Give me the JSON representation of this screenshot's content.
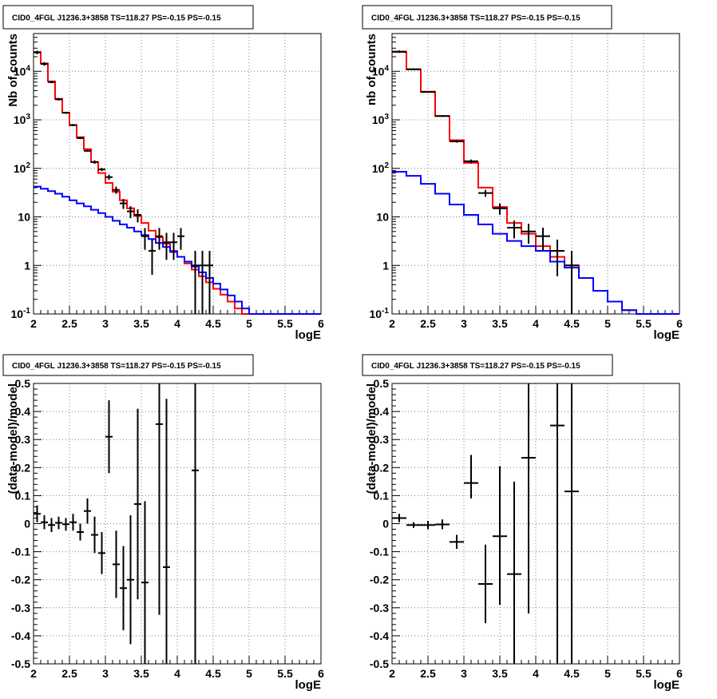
{
  "colors": {
    "model_total": "#ff0000",
    "model_background": "#0000ff",
    "data": "#000000",
    "grid": "#7f7f7f"
  },
  "chart_data": [
    {
      "type": "step-histogram",
      "title": "CID0_4FGL J1236.3+3858 TS=118.27 PS=-0.15 PS=-0.15",
      "xlabel": "logE",
      "ylabel": "Nb of counts",
      "yscale": "log",
      "xlim": [
        2,
        6
      ],
      "ylim": [
        0.1,
        60000
      ],
      "grid": true,
      "x_ticks": [
        "2",
        "2.5",
        "3",
        "3.5",
        "4",
        "4.5",
        "5",
        "5.5",
        "6"
      ],
      "y_ticks": [
        "10^-1",
        "1",
        "10",
        "10^2",
        "10^3",
        "10^4"
      ],
      "bin_edges": [
        2.0,
        2.1,
        2.2,
        2.3,
        2.4,
        2.5,
        2.6,
        2.7,
        2.8,
        2.9,
        3.0,
        3.1,
        3.2,
        3.3,
        3.4,
        3.5,
        3.6,
        3.7,
        3.8,
        3.9,
        4.0,
        4.1,
        4.2,
        4.3,
        4.4,
        4.5,
        4.6,
        4.7,
        4.8,
        4.9,
        5.0,
        5.1,
        5.2,
        5.3,
        5.4,
        5.5,
        5.6,
        5.7,
        5.8,
        5.9,
        6.0
      ],
      "series": [
        {
          "color": "red",
          "values": [
            25000,
            14500,
            6200,
            2700,
            1400,
            780,
            440,
            250,
            135,
            80,
            50,
            33,
            22,
            15,
            10.5,
            7.5,
            5.2,
            3.8,
            2.8,
            2.0,
            1.5,
            1.1,
            0.82,
            0.6,
            0.45,
            0.33,
            0.25,
            0.18,
            0.13,
            0.1,
            0.1,
            0.1,
            0.1,
            0.1,
            0.1,
            0.1,
            0.1,
            0.1,
            0.1,
            0.1
          ]
        },
        {
          "color": "blue",
          "values": [
            42,
            38,
            34,
            30,
            26,
            22,
            19,
            16.5,
            14,
            12,
            10,
            8.3,
            7,
            6,
            5,
            4.2,
            3.5,
            2.9,
            2.4,
            1.9,
            1.5,
            1.2,
            0.95,
            0.72,
            0.55,
            0.42,
            0.32,
            0.24,
            0.18,
            0.13,
            0.1,
            0.1,
            0.1,
            0.1,
            0.1,
            0.1,
            0.1,
            0.1,
            0.1,
            0.1
          ]
        },
        {
          "type": "errorbar",
          "color": "black",
          "x": [
            2.05,
            2.15,
            2.25,
            2.35,
            2.45,
            2.55,
            2.65,
            2.75,
            2.85,
            2.95,
            3.05,
            3.15,
            3.25,
            3.35,
            3.45,
            3.55,
            3.65,
            3.75,
            3.85,
            3.95,
            4.05,
            4.25,
            4.35,
            4.45
          ],
          "xerr": 0.05,
          "y": [
            24500,
            14200,
            6000,
            2650,
            1400,
            780,
            420,
            230,
            135,
            95,
            66,
            36,
            19,
            13,
            11,
            4,
            2,
            4,
            3,
            3,
            4,
            1,
            1,
            1
          ],
          "ylow": [
            22500,
            13000,
            5700,
            2500,
            1330,
            740,
            400,
            220,
            124,
            88,
            58,
            30,
            14.6,
            9.4,
            7.7,
            2.1,
            0.64,
            2.1,
            1.3,
            1.3,
            2.1,
            0.1,
            0.1,
            0.1
          ],
          "yhigh": [
            26500,
            15400,
            6300,
            2800,
            1470,
            820,
            440,
            240,
            146,
            102,
            74,
            42,
            23.4,
            16.6,
            14.3,
            5.9,
            3.4,
            5.9,
            4.7,
            4.7,
            5.9,
            2,
            2,
            2
          ]
        }
      ]
    },
    {
      "type": "step-histogram",
      "title": "CID0_4FGL J1236.3+3858 TS=118.27 PS=-0.15 PS=-0.15",
      "xlabel": "logE",
      "ylabel": "nb of counts",
      "yscale": "log",
      "xlim": [
        2,
        6
      ],
      "ylim": [
        0.1,
        60000
      ],
      "grid": true,
      "x_ticks": [
        "2",
        "2.5",
        "3",
        "3.5",
        "4",
        "4.5",
        "5",
        "5.5",
        "6"
      ],
      "y_ticks": [
        "10^-1",
        "1",
        "10",
        "10^2",
        "10^3",
        "10^4"
      ],
      "bin_edges": [
        2.0,
        2.2,
        2.4,
        2.6,
        2.8,
        3.0,
        3.2,
        3.4,
        3.6,
        3.8,
        4.0,
        4.2,
        4.4,
        4.6,
        4.8,
        5.0,
        5.2,
        5.4,
        5.6,
        5.8,
        6.0
      ],
      "series": [
        {
          "color": "red",
          "values": [
            25000,
            11000,
            3800,
            1200,
            380,
            130,
            40,
            16,
            7.5,
            4.5,
            2.5,
            1.5,
            1.0,
            0.55,
            0.3,
            0.18,
            0.12,
            0.1,
            0.1,
            0.1
          ]
        },
        {
          "color": "blue",
          "values": [
            85,
            70,
            48,
            30,
            18,
            11,
            7,
            4.5,
            3.2,
            2.5,
            2.0,
            1.2,
            0.9,
            0.55,
            0.3,
            0.18,
            0.12,
            0.1,
            0.1,
            0.1
          ]
        },
        {
          "type": "errorbar",
          "color": "black",
          "x": [
            2.1,
            2.3,
            2.5,
            2.7,
            2.9,
            3.1,
            3.3,
            3.5,
            3.7,
            3.9,
            4.1,
            4.3,
            4.5
          ],
          "xerr": 0.1,
          "y": [
            25500,
            11000,
            3750,
            1200,
            360,
            140,
            31,
            15,
            6,
            5,
            4,
            2,
            1
          ],
          "ylow": [
            24000,
            10500,
            3700,
            1150,
            340,
            128,
            26,
            11.1,
            3.6,
            2.8,
            2,
            0.6,
            0.1
          ],
          "yhigh": [
            27000,
            11500,
            3800,
            1250,
            380,
            152,
            36,
            18.9,
            8.4,
            7.2,
            6,
            3.4,
            2
          ]
        }
      ]
    },
    {
      "type": "errorbar",
      "title": "CID0_4FGL J1236.3+3858 TS=118.27 PS=-0.15 PS=-0.15",
      "xlabel": "logE",
      "ylabel": "(data-model)/model",
      "xlim": [
        2,
        6
      ],
      "ylim": [
        -0.5,
        0.5
      ],
      "grid": true,
      "x_ticks": [
        "2",
        "2.5",
        "3",
        "3.5",
        "4",
        "4.5",
        "5",
        "5.5",
        "6"
      ],
      "y_ticks": [
        "-0.5",
        "-0.4",
        "-0.3",
        "-0.2",
        "-0.1",
        "0",
        "0.1",
        "0.2",
        "0.3",
        "0.4",
        "0.5"
      ],
      "series": [
        {
          "color": "black",
          "xerr": 0.05,
          "x": [
            2.05,
            2.15,
            2.25,
            2.35,
            2.45,
            2.55,
            2.65,
            2.75,
            2.85,
            2.95,
            3.05,
            3.15,
            3.25,
            3.35,
            3.45,
            3.55,
            3.75,
            3.85,
            4.25
          ],
          "y": [
            0.035,
            0.005,
            -0.005,
            0.003,
            -0.002,
            0.005,
            -0.03,
            0.045,
            -0.04,
            -0.105,
            0.31,
            -0.145,
            -0.23,
            -0.2,
            0.07,
            -0.21,
            0.355,
            -0.155,
            0.19
          ],
          "ylow": [
            0.005,
            -0.02,
            -0.03,
            -0.02,
            -0.025,
            -0.025,
            -0.06,
            0.0,
            -0.105,
            -0.18,
            0.18,
            -0.265,
            -0.38,
            -0.43,
            -0.27,
            -0.5,
            -0.325,
            -0.5,
            -0.5
          ],
          "yhigh": [
            0.065,
            0.03,
            0.02,
            0.025,
            0.02,
            0.035,
            0.0,
            0.09,
            0.025,
            -0.03,
            0.44,
            -0.025,
            -0.08,
            0.03,
            0.41,
            0.08,
            0.5,
            0.445,
            0.5
          ]
        }
      ]
    },
    {
      "type": "errorbar",
      "title": "CID0_4FGL J1236.3+3858 TS=118.27 PS=-0.15 PS=-0.15",
      "xlabel": "logE",
      "ylabel": "(data-model)/model",
      "xlim": [
        2,
        6
      ],
      "ylim": [
        -0.5,
        0.5
      ],
      "grid": true,
      "x_ticks": [
        "2",
        "2.5",
        "3",
        "3.5",
        "4",
        "4.5",
        "5",
        "5.5",
        "6"
      ],
      "y_ticks": [
        "-0.5",
        "-0.4",
        "-0.3",
        "-0.2",
        "-0.1",
        "0",
        "0.1",
        "0.2",
        "0.3",
        "0.4",
        "0.5"
      ],
      "series": [
        {
          "color": "black",
          "xerr": 0.1,
          "x": [
            2.1,
            2.3,
            2.5,
            2.7,
            2.9,
            3.1,
            3.3,
            3.5,
            3.7,
            3.9,
            4.3,
            4.5
          ],
          "y": [
            0.02,
            -0.005,
            -0.005,
            -0.003,
            -0.065,
            0.145,
            -0.215,
            -0.045,
            -0.18,
            0.235,
            0.35,
            0.115
          ],
          "ylow": [
            0.005,
            -0.015,
            -0.02,
            -0.02,
            -0.09,
            0.09,
            -0.355,
            -0.29,
            -0.5,
            -0.32,
            -0.5,
            -0.5
          ],
          "yhigh": [
            0.035,
            0.005,
            0.01,
            0.015,
            -0.04,
            0.245,
            -0.075,
            0.205,
            0.15,
            0.5,
            0.5,
            0.5
          ]
        }
      ]
    }
  ]
}
